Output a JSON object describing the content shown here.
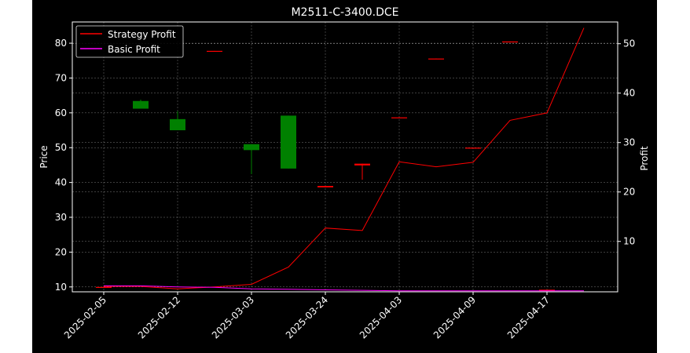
{
  "chart_data": {
    "type": "candlestick",
    "title": "M2511-C-3400.DCE",
    "ylabel_left": "Price",
    "ylabel_right": "Profit",
    "xlabel": "",
    "background": "#000000",
    "grid": true,
    "legend_position": "upper-left",
    "left_axis": {
      "ylim": [
        8.6,
        86.1
      ],
      "ticks": [
        10,
        20,
        30,
        40,
        50,
        60,
        70,
        80
      ]
    },
    "right_axis": {
      "ylim": [
        -0.2,
        54.4
      ],
      "ticks": [
        10,
        20,
        30,
        40,
        50
      ]
    },
    "x_ticks": [
      "2025-02-05",
      "2025-02-12",
      "2025-03-03",
      "2025-03-24",
      "2025-04-03",
      "2025-04-09",
      "2025-04-17"
    ],
    "candles": [
      {
        "index": 0,
        "open": 10.0,
        "high": 10.0,
        "low": 10.0,
        "close": 10.0,
        "color": "#ff0000"
      },
      {
        "index": 1,
        "open": 61.2,
        "high": 63.8,
        "low": 61.2,
        "close": 63.4,
        "color": "#008000"
      },
      {
        "index": 2,
        "open": 55.0,
        "high": 60.5,
        "low": 55.0,
        "close": 58.2,
        "color": "#008000"
      },
      {
        "index": 3,
        "open": 77.8,
        "high": 77.8,
        "low": 77.6,
        "close": 77.6,
        "color": "#ff0000"
      },
      {
        "index": 4,
        "open": 49.3,
        "high": 51.0,
        "low": 42.4,
        "close": 51.0,
        "color": "#008000"
      },
      {
        "index": 5,
        "open": 44.0,
        "high": 59.2,
        "low": 44.0,
        "close": 59.2,
        "color": "#008000"
      },
      {
        "index": 6,
        "open": 39.0,
        "high": 39.0,
        "low": 38.6,
        "close": 38.6,
        "color": "#ff0000"
      },
      {
        "index": 7,
        "open": 45.4,
        "high": 45.4,
        "low": 40.8,
        "close": 44.9,
        "color": "#ff0000"
      },
      {
        "index": 8,
        "open": 58.7,
        "high": 58.7,
        "low": 58.5,
        "close": 58.5,
        "color": "#ff0000"
      },
      {
        "index": 9,
        "open": 75.6,
        "high": 75.6,
        "low": 75.4,
        "close": 75.4,
        "color": "#ff0000"
      },
      {
        "index": 10,
        "open": 50.0,
        "high": 50.0,
        "low": 49.8,
        "close": 49.8,
        "color": "#ff0000"
      },
      {
        "index": 11,
        "open": 80.5,
        "high": 80.5,
        "low": 80.3,
        "close": 80.3,
        "color": "#ff0000"
      },
      {
        "index": 12,
        "open": 9.2,
        "high": 9.2,
        "low": 9.0,
        "close": 9.0,
        "color": "#ff0000"
      }
    ],
    "series": [
      {
        "name": "Strategy Profit",
        "color": "#ff0000",
        "axis": "right",
        "values": [
          0.9,
          0.9,
          0.4,
          0.8,
          1.3,
          4.8,
          12.7,
          12.2,
          26.1,
          25.1,
          26.0,
          34.5,
          36.0,
          53.2
        ]
      },
      {
        "name": "Basic Profit",
        "color": "#ff00ff",
        "axis": "right",
        "values": [
          1.0,
          1.0,
          0.8,
          0.7,
          0.4,
          0.3,
          0.2,
          0.1,
          0.0,
          0.0,
          0.0,
          0.0,
          0.0,
          0.0
        ]
      }
    ]
  }
}
